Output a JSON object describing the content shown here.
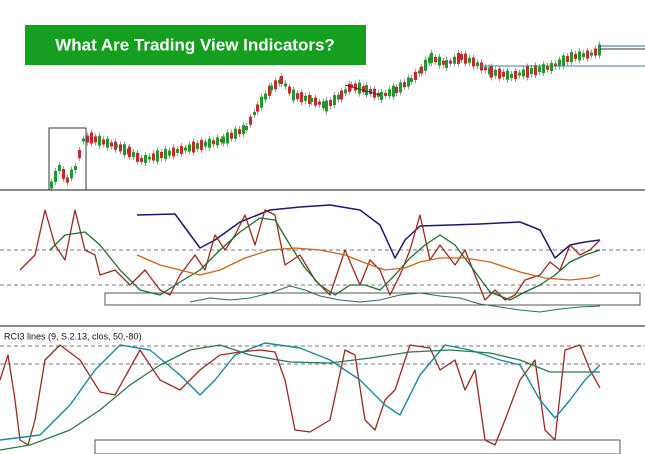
{
  "header": {
    "title": "What Are Trading View Indicators?"
  },
  "indicator": {
    "label": "RCI3 lines (9, S.2.13, clos, 50,-80)"
  }
}
